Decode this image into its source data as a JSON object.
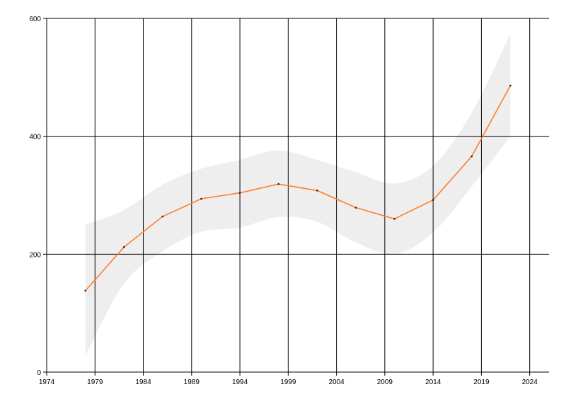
{
  "chart_data": {
    "type": "line",
    "title": "",
    "xlabel": "",
    "ylabel": "",
    "xlim": [
      1974,
      2026
    ],
    "ylim": [
      0,
      600
    ],
    "x_ticks": [
      1974,
      1979,
      1984,
      1989,
      1994,
      1999,
      2004,
      2009,
      2014,
      2019,
      2024
    ],
    "y_ticks": [
      0,
      200,
      400,
      600
    ],
    "x_tick_labels": [
      "1974",
      "1979",
      "1984",
      "1989",
      "1994",
      "1999",
      "2004",
      "2009",
      "2014",
      "2019",
      "2024"
    ],
    "y_tick_labels": [
      "0",
      "200",
      "400",
      "600"
    ],
    "grid": true,
    "legend": "none",
    "series": [
      {
        "x": [
          1978,
          1982,
          1986,
          1990,
          1994,
          1998,
          2002,
          2006,
          2010,
          2014,
          2018,
          2022
        ],
        "values": [
          138,
          212,
          264,
          294,
          304,
          319,
          308,
          279,
          260,
          292,
          366,
          486
        ],
        "color": "#ff7f2a"
      }
    ],
    "band": {
      "x": [
        1978,
        1982,
        1986,
        1990,
        1994,
        1998,
        2002,
        2006,
        2010,
        2014,
        2018,
        2022
      ],
      "lower": [
        28,
        150,
        205,
        238,
        245,
        263,
        255,
        220,
        200,
        237,
        315,
        400
      ],
      "upper": [
        250,
        275,
        318,
        345,
        360,
        376,
        360,
        339,
        320,
        350,
        440,
        574
      ],
      "color": "#eeeeee"
    }
  }
}
